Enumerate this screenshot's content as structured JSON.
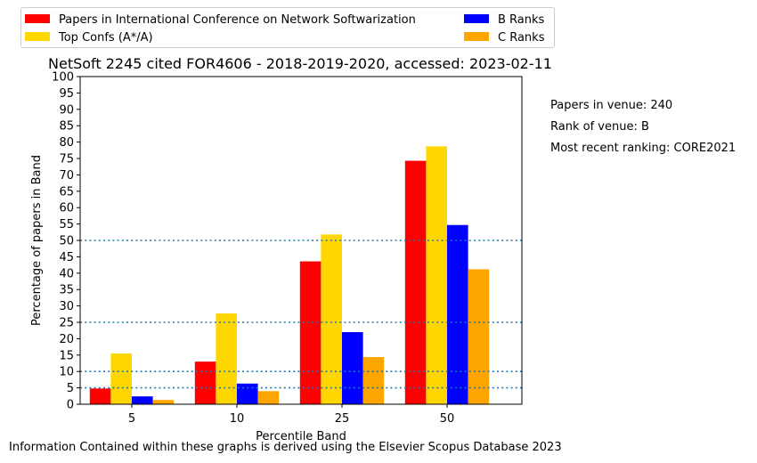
{
  "chart_data": {
    "type": "bar",
    "title": "NetSoft 2245 cited FOR4606 - 2018-2019-2020, accessed: 2023-02-11",
    "xlabel": "Percentile Band",
    "ylabel": "Percentage of papers in Band",
    "categories": [
      "5",
      "10",
      "25",
      "50"
    ],
    "ylim": [
      0,
      100
    ],
    "yticks": [
      "0",
      "5",
      "10",
      "15",
      "20",
      "25",
      "30",
      "35",
      "40",
      "45",
      "50",
      "55",
      "60",
      "65",
      "70",
      "75",
      "80",
      "85",
      "90",
      "95",
      "100"
    ],
    "reference_lines": [
      5,
      10,
      25,
      50
    ],
    "series": [
      {
        "name": "Papers in International Conference on Network Softwarization",
        "color": "#ff0000",
        "values": [
          4.8,
          13.0,
          43.6,
          74.3
        ]
      },
      {
        "name": "Top Confs (A*/A)",
        "color": "#ffd700",
        "values": [
          15.5,
          27.7,
          51.8,
          78.7
        ]
      },
      {
        "name": "B Ranks",
        "color": "#0000ff",
        "values": [
          2.4,
          6.3,
          22.0,
          54.7
        ]
      },
      {
        "name": "C Ranks",
        "color": "#ffa500",
        "values": [
          1.3,
          4.0,
          14.4,
          41.2
        ]
      }
    ],
    "legend_placement": "top",
    "grid": false
  },
  "side_info": [
    "Papers in venue: 240",
    "Rank of venue: B",
    "Most recent ranking: CORE2021"
  ],
  "footer": "Information Contained within these graphs is derived using the Elsevier Scopus Database 2023",
  "colors": {
    "reference_line": "#1f77b4"
  }
}
